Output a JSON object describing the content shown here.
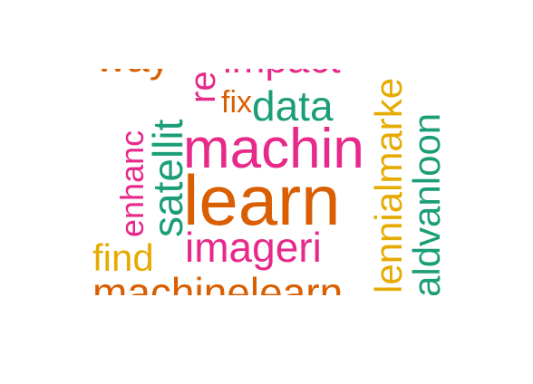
{
  "colors": {
    "orange": "#d95f02",
    "pink": "#e7298a",
    "teal": "#1b9e77",
    "gold": "#e6ab02"
  },
  "words": {
    "learn": "learn",
    "machin": "machin",
    "imageri": "imageri",
    "machinelearn": "machinelearn",
    "satellit": "satellit",
    "enhanc": "enhanc",
    "data": "data",
    "fix": "fix",
    "find": "find",
    "impact": "impact",
    "way": "way",
    "re": "re",
    "lennialmarke": "lennialmarke",
    "aldvanloon": "aldvanloon"
  }
}
